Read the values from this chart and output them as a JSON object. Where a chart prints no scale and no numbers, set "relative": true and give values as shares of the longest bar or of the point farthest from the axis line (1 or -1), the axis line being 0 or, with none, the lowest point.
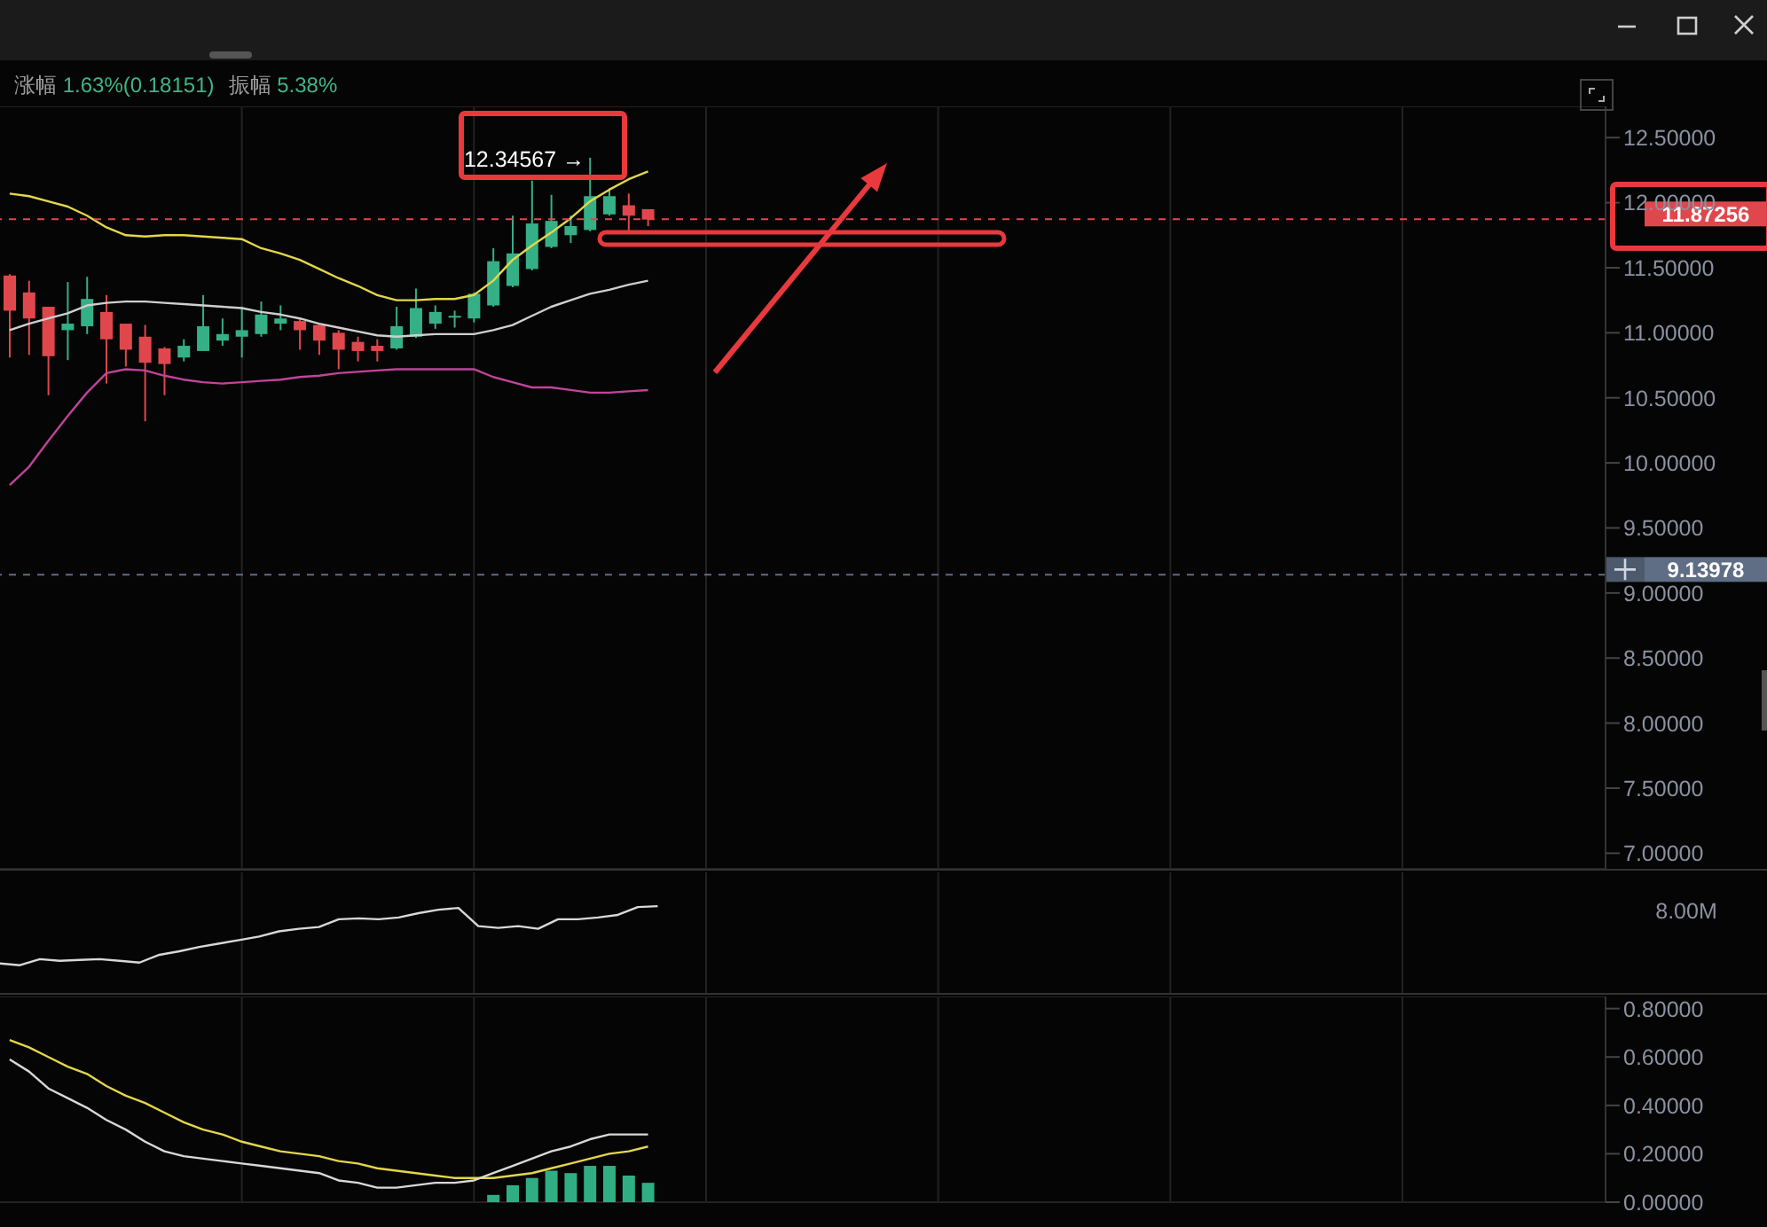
{
  "chart_data": [
    {
      "type": "candlestick",
      "categories": [
        null,
        null,
        null,
        null,
        null,
        null,
        null,
        null,
        null,
        null,
        null,
        null,
        null,
        null,
        null,
        null,
        null,
        null,
        null,
        null,
        null,
        null,
        null,
        null,
        null,
        null,
        null,
        null,
        null,
        null,
        null,
        null,
        null,
        null,
        null,
        null,
        null,
        null,
        null,
        null,
        null,
        null,
        null,
        null,
        null,
        null,
        null,
        null,
        null,
        null,
        null,
        null,
        null,
        null,
        null,
        null,
        null,
        null,
        null,
        null,
        null,
        null,
        null,
        null,
        null,
        null,
        null,
        null,
        null,
        null,
        null,
        null,
        null,
        null,
        null,
        null,
        null,
        null,
        null,
        null,
        null,
        null,
        null
      ],
      "ohlc": [
        [
          11.44,
          11.45,
          10.81,
          11.17
        ],
        [
          11.31,
          11.4,
          10.83,
          11.11
        ],
        [
          11.2,
          11.2,
          10.52,
          10.82
        ],
        [
          11.02,
          11.39,
          10.79,
          11.07
        ],
        [
          11.05,
          11.43,
          10.99,
          11.26
        ],
        [
          11.16,
          11.29,
          10.61,
          10.95
        ],
        [
          11.07,
          11.07,
          10.74,
          10.87
        ],
        [
          10.97,
          11.06,
          10.32,
          10.77
        ],
        [
          10.88,
          10.89,
          10.52,
          10.76
        ],
        [
          10.81,
          10.95,
          10.78,
          10.9
        ],
        [
          10.86,
          11.29,
          10.86,
          11.05
        ],
        [
          10.94,
          11.11,
          10.9,
          10.99
        ],
        [
          10.97,
          11.2,
          10.81,
          11.02
        ],
        [
          10.99,
          11.24,
          10.97,
          11.14
        ],
        [
          11.07,
          11.21,
          11.02,
          11.11
        ],
        [
          11.09,
          11.11,
          10.87,
          11.02
        ],
        [
          11.06,
          11.07,
          10.83,
          10.94
        ],
        [
          11.0,
          11.02,
          10.72,
          10.87
        ],
        [
          10.93,
          10.97,
          10.78,
          10.86
        ],
        [
          10.9,
          10.95,
          10.78,
          10.86
        ],
        [
          10.88,
          11.2,
          10.87,
          11.05
        ],
        [
          10.97,
          11.34,
          10.96,
          11.19
        ],
        [
          11.07,
          11.21,
          11.03,
          11.16
        ],
        [
          11.12,
          11.17,
          11.04,
          11.13
        ],
        [
          11.11,
          11.31,
          11.08,
          11.3
        ],
        [
          11.21,
          11.65,
          11.2,
          11.55
        ],
        [
          11.36,
          11.9,
          11.35,
          11.61
        ],
        [
          11.49,
          12.17,
          11.48,
          11.84
        ],
        [
          11.66,
          12.06,
          11.65,
          11.86
        ],
        [
          11.75,
          11.9,
          11.69,
          11.82
        ],
        [
          11.79,
          12.34567,
          11.78,
          12.05
        ],
        [
          11.91,
          12.11,
          11.9,
          12.05
        ],
        [
          11.98,
          12.07,
          11.76,
          11.9
        ],
        [
          11.95,
          11.95,
          11.82,
          11.87
        ],
        null,
        null,
        null,
        null,
        null,
        null,
        null,
        null,
        null,
        null,
        null,
        null,
        null,
        null,
        null,
        null,
        null,
        null,
        null,
        null,
        null,
        null,
        null,
        null,
        null,
        null,
        null,
        null,
        null,
        null,
        null,
        null,
        null,
        null,
        null,
        null,
        null,
        null,
        null,
        null,
        null,
        null,
        null,
        null,
        null,
        null,
        null,
        null,
        null
      ],
      "colors": [
        "#e0474c",
        "#e0474c",
        "#e0474c",
        "#35b086",
        "#35b086",
        "#e0474c",
        "#e0474c",
        "#e0474c",
        "#e0474c",
        "#35b086",
        "#35b086",
        "#35b086",
        "#35b086",
        "#35b086",
        "#35b086",
        "#e0474c",
        "#e0474c",
        "#e0474c",
        "#e0474c",
        "#e0474c",
        "#35b086",
        "#35b086",
        "#35b086",
        "#35b086",
        "#35b086",
        "#35b086",
        "#35b086",
        "#35b086",
        "#35b086",
        "#35b086",
        "#35b086",
        "#35b086",
        "#e0474c",
        "#e0474c",
        null,
        null,
        null,
        null,
        null,
        null,
        null,
        null,
        null,
        null,
        null,
        null,
        null,
        null,
        null,
        null,
        null,
        null,
        null,
        null,
        null,
        null,
        null,
        null,
        null,
        null,
        null,
        null,
        null,
        null,
        null,
        null,
        null,
        null,
        null,
        null,
        null,
        null,
        null,
        null,
        null,
        null,
        null,
        null,
        null,
        null,
        null,
        null,
        null
      ],
      "series": [
        {
          "type": "line",
          "color": "#e3d64b",
          "values": [
            12.07,
            12.05,
            12.01,
            11.97,
            11.9,
            11.81,
            11.75,
            11.74,
            11.75,
            11.75,
            11.74,
            11.73,
            11.72,
            11.65,
            11.61,
            11.56,
            11.49,
            11.42,
            11.36,
            11.29,
            11.25,
            11.25,
            11.26,
            11.26,
            11.29,
            11.4,
            11.56,
            11.67,
            11.77,
            11.88,
            12.01,
            12.1,
            12.18,
            12.24,
            null,
            null,
            null,
            null,
            null,
            null,
            null,
            null,
            null,
            null,
            null,
            null,
            null,
            null,
            null,
            null,
            null,
            null,
            null,
            null,
            null,
            null,
            null,
            null,
            null,
            null,
            null,
            null,
            null,
            null,
            null,
            null,
            null,
            null,
            null,
            null,
            null,
            null,
            null,
            null,
            null,
            null,
            null,
            null,
            null,
            null,
            null,
            null,
            null
          ]
        },
        {
          "type": "line",
          "color": "#cfcfcf",
          "values": [
            11.02,
            11.07,
            11.11,
            11.15,
            11.21,
            11.23,
            11.24,
            11.24,
            11.23,
            11.22,
            11.21,
            11.2,
            11.19,
            11.16,
            11.14,
            11.11,
            11.07,
            11.04,
            11.01,
            10.98,
            10.97,
            10.98,
            10.99,
            10.99,
            10.99,
            11.02,
            11.06,
            11.13,
            11.2,
            11.25,
            11.3,
            11.33,
            11.37,
            11.4,
            null,
            null,
            null,
            null,
            null,
            null,
            null,
            null,
            null,
            null,
            null,
            null,
            null,
            null,
            null,
            null,
            null,
            null,
            null,
            null,
            null,
            null,
            null,
            null,
            null,
            null,
            null,
            null,
            null,
            null,
            null,
            null,
            null,
            null,
            null,
            null,
            null,
            null,
            null,
            null,
            null,
            null,
            null,
            null,
            null,
            null,
            null,
            null,
            null
          ]
        },
        {
          "type": "line",
          "color": "#c0449a",
          "values": [
            9.83,
            9.97,
            10.17,
            10.36,
            10.54,
            10.69,
            10.72,
            10.71,
            10.67,
            10.64,
            10.62,
            10.61,
            10.62,
            10.63,
            10.64,
            10.66,
            10.67,
            10.69,
            10.7,
            10.71,
            10.72,
            10.72,
            10.72,
            10.72,
            10.72,
            10.66,
            10.62,
            10.58,
            10.58,
            10.56,
            10.54,
            10.54,
            10.55,
            10.56,
            null,
            null,
            null,
            null,
            null,
            null,
            null,
            null,
            null,
            null,
            null,
            null,
            null,
            null,
            null,
            null,
            null,
            null,
            null,
            null,
            null,
            null,
            null,
            null,
            null,
            null,
            null,
            null,
            null,
            null,
            null,
            null,
            null,
            null,
            null,
            null,
            null,
            null,
            null,
            null,
            null,
            null,
            null,
            null,
            null,
            null,
            null,
            null,
            null
          ]
        }
      ],
      "ylim": [
        6.88,
        12.74
      ],
      "yticks": [
        {
          "value": 7,
          "label": "7.00000"
        },
        {
          "value": 7.5,
          "label": "7.50000"
        },
        {
          "value": 8,
          "label": "8.00000"
        },
        {
          "value": 8.5,
          "label": "8.50000"
        },
        {
          "value": 9,
          "label": "9.00000"
        },
        {
          "value": 9.5,
          "label": "9.50000"
        },
        {
          "value": 10,
          "label": "10.00000"
        },
        {
          "value": 10.5,
          "label": "10.50000"
        },
        {
          "value": 11,
          "label": "11.00000"
        },
        {
          "value": 11.5,
          "label": "11.50000"
        },
        {
          "value": 12,
          "label": "12.00000"
        },
        {
          "value": 12.5,
          "label": "12.50000"
        }
      ],
      "grid": true,
      "tick_labels": "y",
      "ref_lines": [
        {
          "axis": "y",
          "value": 11.87256,
          "label": "11.87256",
          "color": "#e0474c",
          "line_style": "dashed"
        },
        {
          "axis": "y",
          "value": 9.13978,
          "label": "9.13978",
          "color": "#5f6e85",
          "line_style": "dashed"
        }
      ],
      "annotations": [
        "涨幅 1.63%(0.18151)",
        "振幅 5.38%",
        "12.34567 →"
      ]
    },
    {
      "type": "line",
      "relative": true,
      "categories": [
        null,
        null,
        null,
        null,
        null,
        null,
        null,
        null,
        null,
        null,
        null,
        null,
        null,
        null,
        null,
        null,
        null,
        null,
        null,
        null,
        null,
        null,
        null,
        null,
        null,
        null,
        null,
        null,
        null,
        null,
        null,
        null,
        null,
        null
      ],
      "color": "#d8d8d8",
      "values": [
        0.34,
        0.32,
        0.39,
        0.37,
        0.38,
        0.39,
        0.37,
        0.35,
        0.44,
        0.48,
        0.53,
        0.57,
        0.61,
        0.65,
        0.71,
        0.74,
        0.76,
        0.85,
        0.86,
        0.85,
        0.87,
        0.92,
        0.96,
        0.98,
        0.77,
        0.75,
        0.77,
        0.74,
        0.85,
        0.85,
        0.87,
        0.9,
        0.99,
        1
      ],
      "grid": "x",
      "tick_labels": false,
      "annotations": [
        "8.00M"
      ]
    },
    {
      "type": "line",
      "categories": [
        null,
        null,
        null,
        null,
        null,
        null,
        null,
        null,
        null,
        null,
        null,
        null,
        null,
        null,
        null,
        null,
        null,
        null,
        null,
        null,
        null,
        null,
        null,
        null,
        null,
        null,
        null,
        null,
        null,
        null,
        null,
        null,
        null,
        null,
        null,
        null,
        null,
        null,
        null,
        null,
        null,
        null,
        null,
        null,
        null,
        null,
        null,
        null,
        null,
        null,
        null,
        null,
        null,
        null,
        null,
        null,
        null,
        null,
        null,
        null,
        null,
        null,
        null,
        null,
        null,
        null,
        null,
        null,
        null,
        null,
        null,
        null,
        null,
        null,
        null,
        null,
        null,
        null,
        null,
        null,
        null,
        null,
        null
      ],
      "series": [
        {
          "type": "line",
          "color": "#e3d64b",
          "values": [
            0.67,
            0.64,
            0.6,
            0.56,
            0.53,
            0.48,
            0.44,
            0.41,
            0.37,
            0.33,
            0.3,
            0.28,
            0.25,
            0.23,
            0.21,
            0.2,
            0.19,
            0.17,
            0.16,
            0.14,
            0.13,
            0.12,
            0.11,
            0.1,
            0.1,
            0.1,
            0.11,
            0.12,
            0.14,
            0.16,
            0.18,
            0.2,
            0.21,
            0.23,
            null,
            null,
            null,
            null,
            null,
            null,
            null,
            null,
            null,
            null,
            null,
            null,
            null,
            null,
            null,
            null,
            null,
            null,
            null,
            null,
            null,
            null,
            null,
            null,
            null,
            null,
            null,
            null,
            null,
            null,
            null,
            null,
            null,
            null,
            null,
            null,
            null,
            null,
            null,
            null,
            null,
            null,
            null,
            null,
            null,
            null,
            null,
            null,
            null
          ]
        },
        {
          "type": "line",
          "color": "#d8d8d8",
          "values": [
            0.59,
            0.54,
            0.47,
            0.43,
            0.39,
            0.34,
            0.3,
            0.25,
            0.21,
            0.19,
            0.18,
            0.17,
            0.16,
            0.15,
            0.14,
            0.13,
            0.12,
            0.09,
            0.08,
            0.06,
            0.06,
            0.07,
            0.08,
            0.08,
            0.09,
            0.12,
            0.15,
            0.18,
            0.21,
            0.23,
            0.26,
            0.28,
            0.28,
            0.28,
            null,
            null,
            null,
            null,
            null,
            null,
            null,
            null,
            null,
            null,
            null,
            null,
            null,
            null,
            null,
            null,
            null,
            null,
            null,
            null,
            null,
            null,
            null,
            null,
            null,
            null,
            null,
            null,
            null,
            null,
            null,
            null,
            null,
            null,
            null,
            null,
            null,
            null,
            null,
            null,
            null,
            null,
            null,
            null,
            null,
            null,
            null,
            null,
            null
          ]
        },
        {
          "type": "bar",
          "color": "#2fae84",
          "values": [
            null,
            null,
            null,
            null,
            null,
            null,
            null,
            null,
            null,
            null,
            null,
            null,
            null,
            null,
            null,
            null,
            null,
            null,
            null,
            null,
            null,
            null,
            null,
            null,
            null,
            0.03,
            0.07,
            0.1,
            0.13,
            0.12,
            0.15,
            0.15,
            0.11,
            0.08,
            null,
            null,
            null,
            null,
            null,
            null,
            null,
            null,
            null,
            null,
            null,
            null,
            null,
            null,
            null,
            null,
            null,
            null,
            null,
            null,
            null,
            null,
            null,
            null,
            null,
            null,
            null,
            null,
            null,
            null,
            null,
            null,
            null,
            null,
            null,
            null,
            null,
            null,
            null,
            null,
            null,
            null,
            null,
            null,
            null,
            null,
            null,
            null,
            null
          ]
        }
      ],
      "ylim": [
        0,
        0.85
      ],
      "yticks": [
        {
          "value": 0,
          "label": "0.00000"
        },
        {
          "value": 0.2,
          "label": "0.20000"
        },
        {
          "value": 0.4,
          "label": "0.40000"
        },
        {
          "value": 0.6,
          "label": "0.60000"
        },
        {
          "value": 0.8,
          "label": "0.80000"
        }
      ],
      "grid": true,
      "tick_labels": "y"
    }
  ]
}
